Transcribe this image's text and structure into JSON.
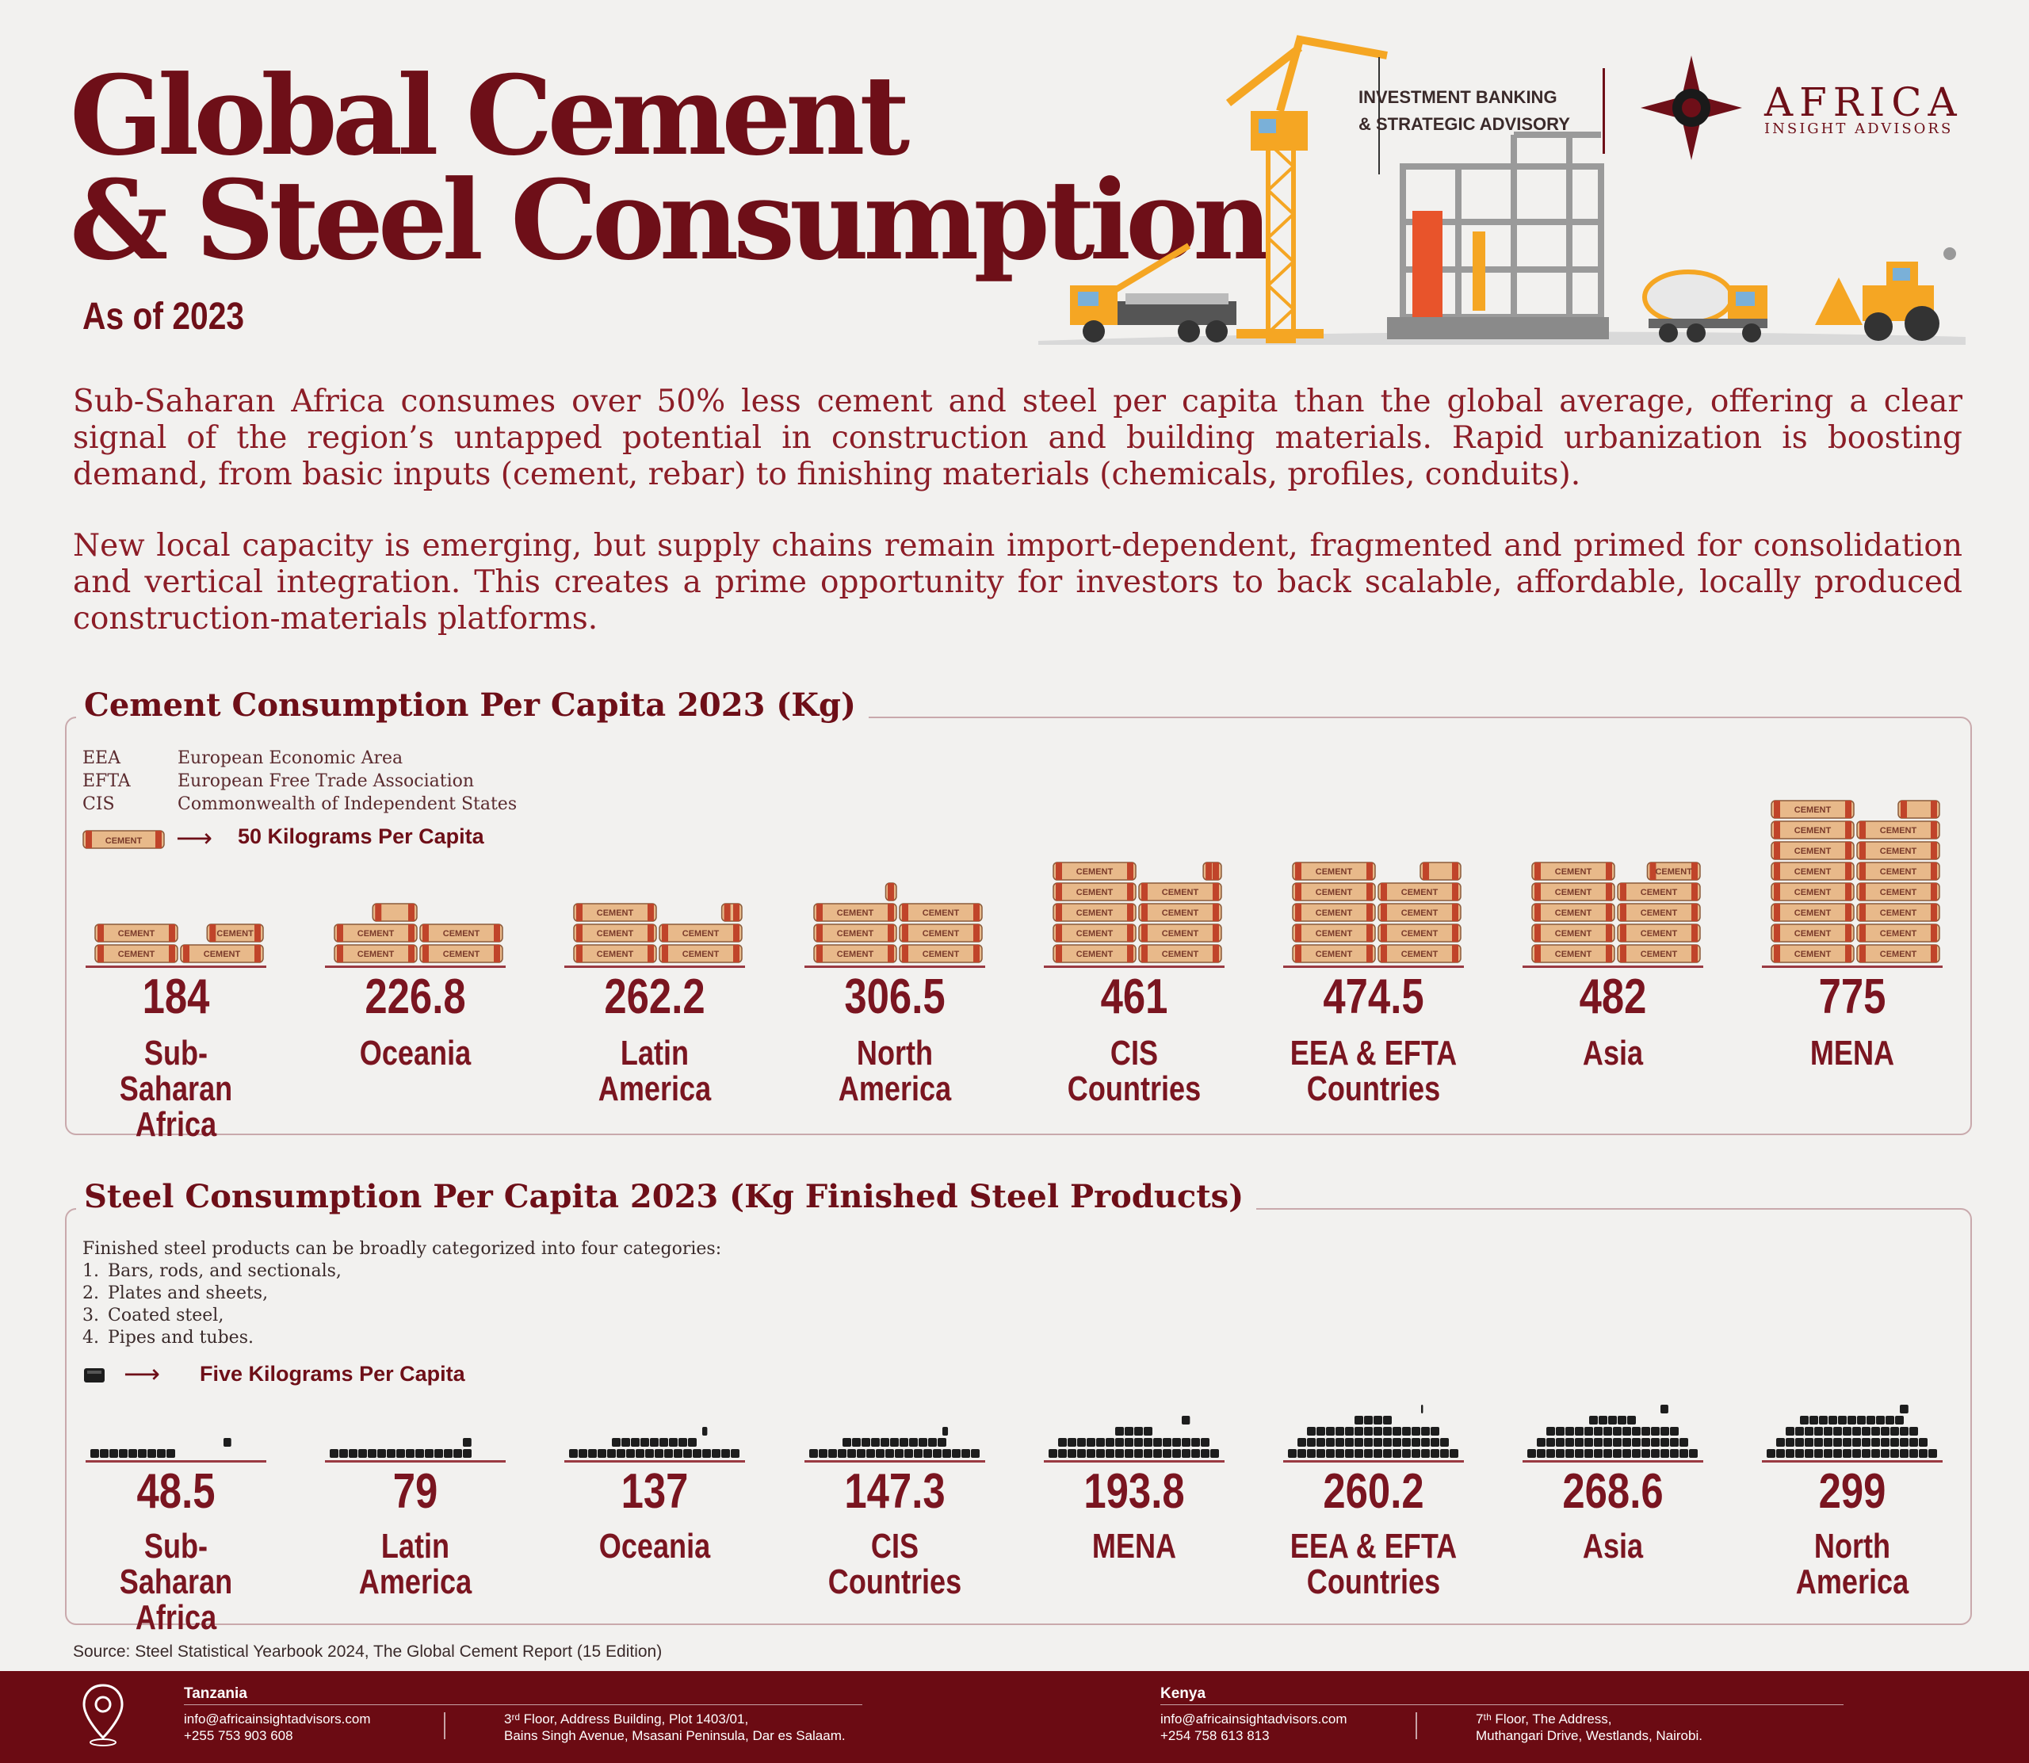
{
  "header": {
    "title_line1": "Global Cement",
    "title_line2": "& Steel Consumption",
    "subtitle": "As of 2023",
    "service_line1": "INVESTMENT BANKING",
    "service_line2": "& STRATEGIC ADVISORY",
    "brand_name": "AFRICA",
    "brand_tagline": "INSIGHT ADVISORS"
  },
  "intro": {
    "paragraph1": "Sub-Saharan Africa consumes over 50% less cement and steel per capita than the global average, offering a clear signal of the region’s untapped potential in construction and building materials. Rapid urbanization is boosting demand, from basic inputs (cement, rebar) to finishing materials (chemicals, profiles, conduits).",
    "paragraph2": "New local capacity is emerging, but supply chains remain import-dependent, fragmented and primed for consolidation and vertical integration. This creates a prime opportunity for investors to back scalable, affordable, locally produced construction-materials platforms."
  },
  "cement_section": {
    "abbreviations": [
      {
        "code": "EEA",
        "meaning": "European Economic Area"
      },
      {
        "code": "EFTA",
        "meaning": "European Free Trade Association"
      },
      {
        "code": "CIS",
        "meaning": "Commonwealth of Independent States"
      }
    ],
    "legend_bag_text": "CEMENT",
    "legend_arrow": "⟶",
    "legend_label": "50 Kilograms Per Capita"
  },
  "steel_section": {
    "note_intro": "Finished steel products can be broadly categorized into four categories:",
    "categories": [
      "Bars, rods, and sectionals,",
      "Plates and sheets,",
      "Coated steel,",
      "Pipes and tubes."
    ],
    "legend_arrow": "⟶",
    "legend_label": "Five Kilograms Per Capita"
  },
  "chart_data": [
    {
      "type": "bar",
      "title": "Cement Consumption Per Capita 2023 (Kg)",
      "unit": "Kg per capita",
      "icon_unit": 50,
      "categories": [
        "Sub-Saharan\nAfrica",
        "Oceania",
        "Latin\nAmerica",
        "North\nAmerica",
        "CIS\nCountries",
        "EEA & EFTA\nCountries",
        "Asia",
        "MENA"
      ],
      "values": [
        184,
        226.8,
        262.2,
        306.5,
        461,
        474.5,
        482,
        775
      ],
      "value_labels": [
        "184",
        "226.8",
        "262.2",
        "306.5",
        "461",
        "474.5",
        "482",
        "775"
      ]
    },
    {
      "type": "bar",
      "title": "Steel Consumption Per Capita 2023 (Kg Finished Steel Products)",
      "unit": "Kg finished steel per capita",
      "icon_unit": 5,
      "categories": [
        "Sub-Saharan\nAfrica",
        "Latin\nAmerica",
        "Oceania",
        "CIS\nCountries",
        "MENA",
        "EEA & EFTA\nCountries",
        "Asia",
        "North\nAmerica"
      ],
      "values": [
        48.5,
        79,
        137,
        147.3,
        193.8,
        260.2,
        268.6,
        299
      ],
      "value_labels": [
        "48.5",
        "79",
        "137",
        "147.3",
        "193.8",
        "260.2",
        "268.6",
        "299"
      ]
    }
  ],
  "source": "Source: Steel Statistical Yearbook 2024, The Global Cement Report (15 Edition)",
  "footer": {
    "tz_country": "Tanzania",
    "tz_email": "info@africainsightadvisors.com",
    "tz_phone": "+255 753 903 608",
    "tz_addr1": "3ʳᵈ Floor, Address Building, Plot 1403/01,",
    "tz_addr2": "Bains Singh Avenue, Msasani Peninsula, Dar es Salaam.",
    "ke_country": "Kenya",
    "ke_email": "info@africainsightadvisors.com",
    "ke_phone": "+254 758 613 813",
    "ke_addr1": "7ᵗʰ Floor, The Address,",
    "ke_addr2": "Muthangari Drive, Westlands, Nairobi."
  },
  "colors": {
    "brand": "#6e0f18",
    "text": "#8c1d27",
    "bag_fill": "#e8b98a",
    "bag_band": "#c0442a",
    "steel": "#1d1d1d",
    "crane": "#f5a623"
  }
}
